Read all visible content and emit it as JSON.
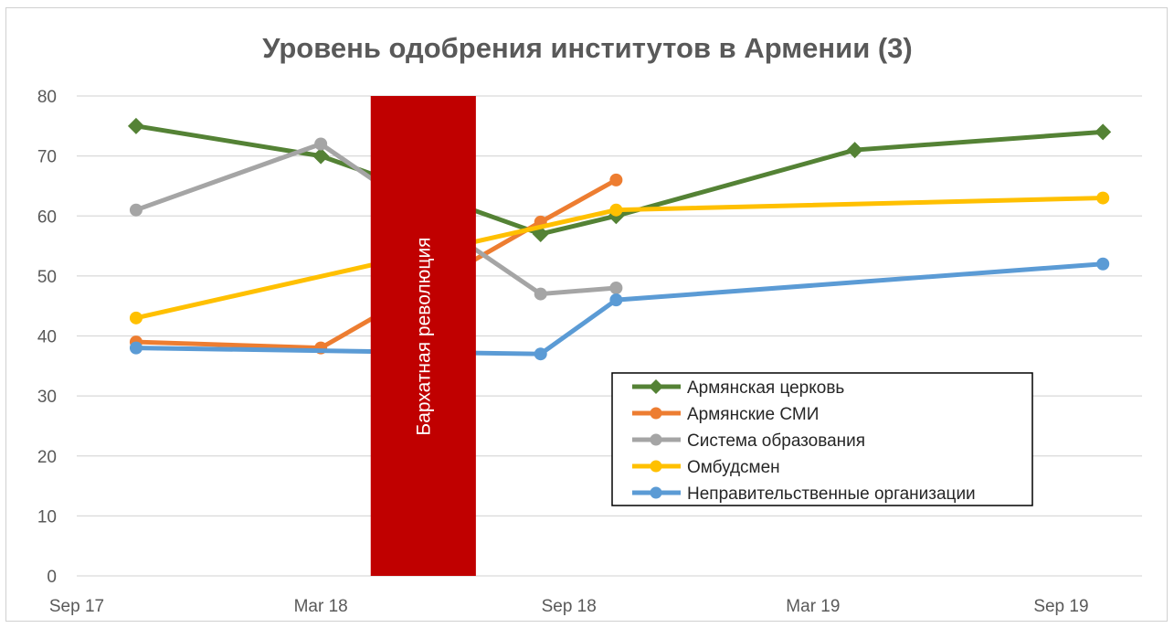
{
  "chart_data": {
    "type": "line",
    "title": "Уровень одобрения институтов в Армении (3)",
    "xlabel": "",
    "ylabel": "",
    "ylim": [
      0,
      80
    ],
    "yticks": [
      0,
      10,
      20,
      30,
      40,
      50,
      60,
      70,
      80
    ],
    "xlim": [
      "2017-09-01",
      "2019-10-31"
    ],
    "xticks": [
      {
        "date": "2017-09-01",
        "label": "Sep 17"
      },
      {
        "date": "2018-03-01",
        "label": "Mar 18"
      },
      {
        "date": "2018-09-01",
        "label": "Sep 18"
      },
      {
        "date": "2019-03-01",
        "label": "Mar 19"
      },
      {
        "date": "2019-09-01",
        "label": "Sep 19"
      }
    ],
    "grid": true,
    "legend_position": "bottom-right",
    "annotation": {
      "label": "Бархатная революция",
      "from": "2018-04-07",
      "to": "2018-06-24",
      "color": "#c00000"
    },
    "series": [
      {
        "name": "Армянская церковь",
        "color": "#548235",
        "marker": "diamond",
        "points": [
          [
            "2017-10-15",
            75
          ],
          [
            "2018-03-01",
            70
          ],
          [
            "2018-08-11",
            57
          ],
          [
            "2018-10-06",
            60
          ],
          [
            "2019-04-01",
            71
          ],
          [
            "2019-10-02",
            74
          ]
        ]
      },
      {
        "name": "Армянские СМИ",
        "color": "#ed7d31",
        "marker": "circle",
        "points": [
          [
            "2017-10-15",
            39
          ],
          [
            "2018-03-01",
            38
          ],
          [
            "2018-08-11",
            59
          ],
          [
            "2018-10-06",
            66
          ]
        ]
      },
      {
        "name": "Система образования",
        "color": "#a5a5a5",
        "marker": "circle",
        "points": [
          [
            "2017-10-15",
            61
          ],
          [
            "2018-03-01",
            72
          ],
          [
            "2018-08-11",
            47
          ],
          [
            "2018-10-06",
            48
          ]
        ]
      },
      {
        "name": "Омбудсмен",
        "color": "#ffc000",
        "marker": "circle",
        "points": [
          [
            "2017-10-15",
            43
          ],
          [
            "2018-10-06",
            61
          ],
          [
            "2019-10-02",
            63
          ]
        ]
      },
      {
        "name": "Неправительственные организации",
        "color": "#5b9bd5",
        "marker": "circle",
        "points": [
          [
            "2017-10-15",
            38
          ],
          [
            "2018-08-11",
            37
          ],
          [
            "2018-10-06",
            46
          ],
          [
            "2019-10-02",
            52
          ]
        ]
      }
    ]
  }
}
